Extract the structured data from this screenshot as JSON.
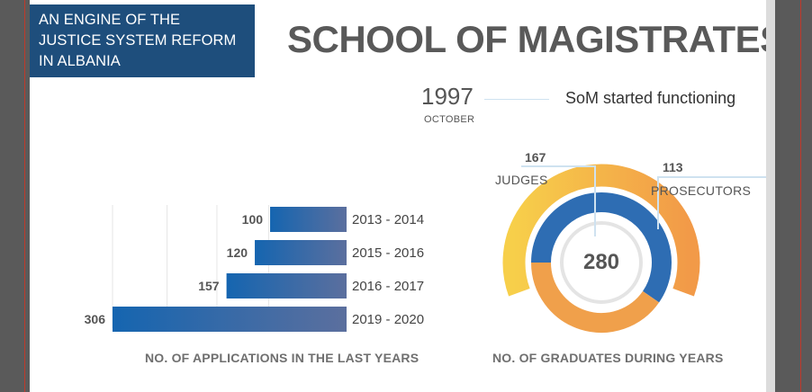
{
  "header": {
    "banner_lines": [
      "AN ENGINE OF THE",
      "JUSTICE SYSTEM REFORM",
      "IN ALBANIA"
    ],
    "title": "SCHOOL OF MAGISTRATES"
  },
  "timeline": {
    "year": "1997",
    "month": "OCTOBER",
    "event": "SoM started functioning"
  },
  "colors": {
    "banner": "#1e4e7c",
    "bar_start": "#1565b0",
    "bar_end": "#5b6f9e",
    "judges": "#2e6db3",
    "prosecutors": "#f0a04b",
    "outer_gradient_start": "#f7cf4a",
    "outer_gradient_end": "#f29a48",
    "connector": "#cfe2f0"
  },
  "chart_data": [
    {
      "type": "bar",
      "orientation": "horizontal",
      "title": "NO. OF APPLICATIONS IN THE LAST YEARS",
      "categories": [
        "2013 - 2014",
        "2015 - 2016",
        "2016 - 2017",
        "2019 - 2020"
      ],
      "values": [
        100,
        120,
        157,
        306
      ],
      "xlim": [
        0,
        306
      ],
      "grid": true
    },
    {
      "type": "pie",
      "variant": "donut",
      "title": "NO. OF GRADUATES DURING YEARS",
      "total": "280",
      "labels": [
        "JUDGES",
        "PROSECUTORS"
      ],
      "values": [
        167,
        113
      ]
    }
  ]
}
